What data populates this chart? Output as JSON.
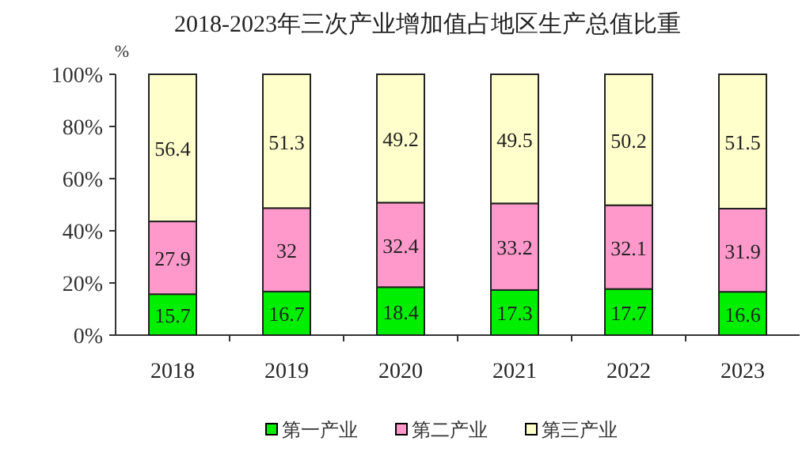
{
  "chart_data": {
    "type": "bar",
    "title": "2018-2023年三次产业增加值占地区生产总值比重",
    "ylabel": "%",
    "categories": [
      "2018",
      "2019",
      "2020",
      "2021",
      "2022",
      "2023"
    ],
    "stacked": true,
    "data_labels": true,
    "legend": "bottom",
    "grid": false,
    "series": [
      {
        "name": "第一产业",
        "color": "#00ee00",
        "values": [
          15.7,
          16.7,
          18.4,
          17.3,
          17.7,
          16.6
        ]
      },
      {
        "name": "第二产业",
        "color": "#ff99cc",
        "values": [
          27.9,
          32,
          32.4,
          33.2,
          32.1,
          31.9
        ]
      },
      {
        "name": "第三产业",
        "color": "#ffffcc",
        "values": [
          56.4,
          51.3,
          49.2,
          49.5,
          50.2,
          51.5
        ]
      }
    ],
    "ylim": [
      0,
      100
    ],
    "yticks": [
      {
        "value": 0,
        "label": "0%"
      },
      {
        "value": 20,
        "label": "20%"
      },
      {
        "value": 40,
        "label": "40%"
      },
      {
        "value": 60,
        "label": "60%"
      },
      {
        "value": 80,
        "label": "80%"
      },
      {
        "value": 100,
        "label": "100%"
      }
    ]
  }
}
